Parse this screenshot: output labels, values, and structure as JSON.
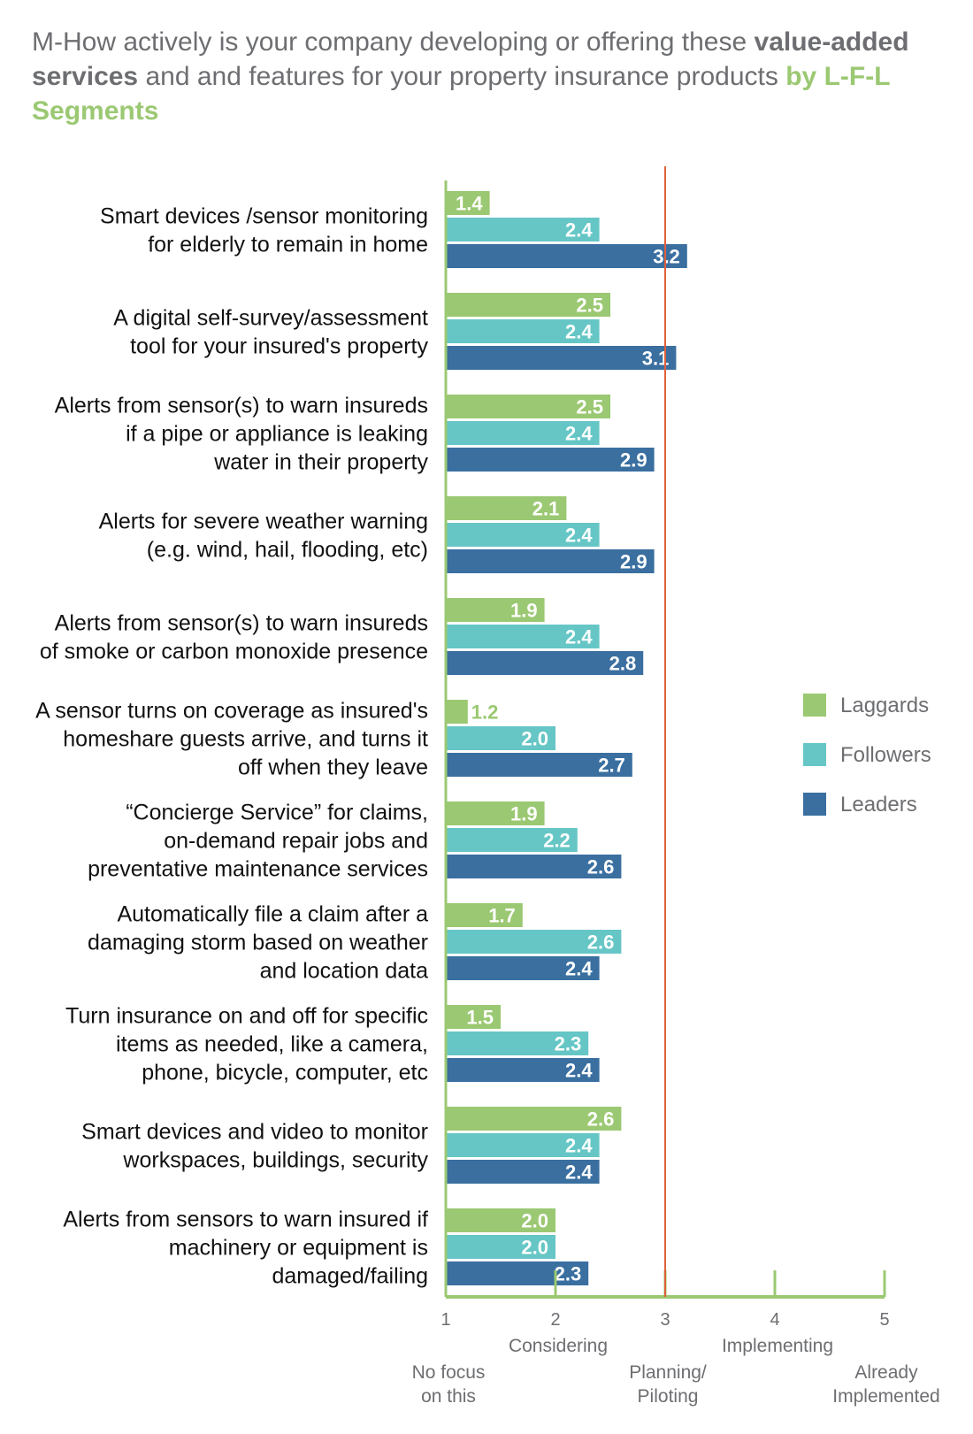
{
  "title": {
    "part1": "M-How actively is your company developing or offering these ",
    "bold": "value-added services",
    "part2": " and and features for your property insurance products ",
    "highlight": "by L-F-L Segments"
  },
  "chart_data": {
    "type": "bar",
    "orientation": "horizontal",
    "xlim": [
      1,
      5
    ],
    "reference_line": 3,
    "x_ticks": [
      "1",
      "2",
      "3",
      "4",
      "5"
    ],
    "x_tick_labels": [
      {
        "value": 1,
        "text": [
          "No focus",
          "on this"
        ]
      },
      {
        "value": 2,
        "text": [
          "Considering"
        ]
      },
      {
        "value": 3,
        "text": [
          "Planning/",
          "Piloting"
        ]
      },
      {
        "value": 4,
        "text": [
          "Implementing"
        ]
      },
      {
        "value": 5,
        "text": [
          "Already",
          "Implemented"
        ]
      }
    ],
    "legend_position": "right",
    "categories": [
      [
        "Smart devices /sensor monitoring",
        "for elderly to remain in home"
      ],
      [
        "A digital self-survey/assessment",
        "tool for your insured's property"
      ],
      [
        "Alerts from sensor(s) to warn insureds",
        "if a pipe or appliance is leaking",
        "water in their property"
      ],
      [
        "Alerts for severe weather warning",
        "(e.g. wind, hail, flooding, etc)"
      ],
      [
        "Alerts from sensor(s) to warn insureds",
        "of smoke or carbon monoxide presence"
      ],
      [
        "A sensor turns on coverage as insured's",
        "homeshare guests arrive, and turns it",
        "off when they leave"
      ],
      [
        "“Concierge Service” for claims,",
        "on-demand repair jobs and",
        "preventative maintenance services"
      ],
      [
        "Automatically file a claim after a",
        "damaging storm based on weather",
        "and location data"
      ],
      [
        "Turn insurance on and off for specific",
        "items as needed, like a camera,",
        "phone, bicycle, computer, etc"
      ],
      [
        "Smart devices and video to monitor",
        "workspaces, buildings, security"
      ],
      [
        "Alerts from sensors to warn insured if",
        "machinery or equipment is",
        "damaged/failing"
      ]
    ],
    "series": [
      {
        "name": "Laggards",
        "color": "#9bc872",
        "values": [
          1.4,
          2.5,
          2.5,
          2.1,
          1.9,
          1.2,
          1.9,
          1.7,
          1.5,
          2.6,
          2.0
        ]
      },
      {
        "name": "Followers",
        "color": "#66c6c6",
        "values": [
          2.4,
          2.4,
          2.4,
          2.4,
          2.4,
          2.0,
          2.2,
          2.6,
          2.3,
          2.4,
          2.0
        ]
      },
      {
        "name": "Leaders",
        "color": "#3a6fa0",
        "values": [
          3.2,
          3.1,
          2.9,
          2.9,
          2.8,
          2.7,
          2.6,
          2.4,
          2.4,
          2.4,
          2.3
        ]
      }
    ],
    "colors": {
      "axis": "#9bc872",
      "reference": "#e0603a",
      "text": "#6d6e71"
    }
  }
}
